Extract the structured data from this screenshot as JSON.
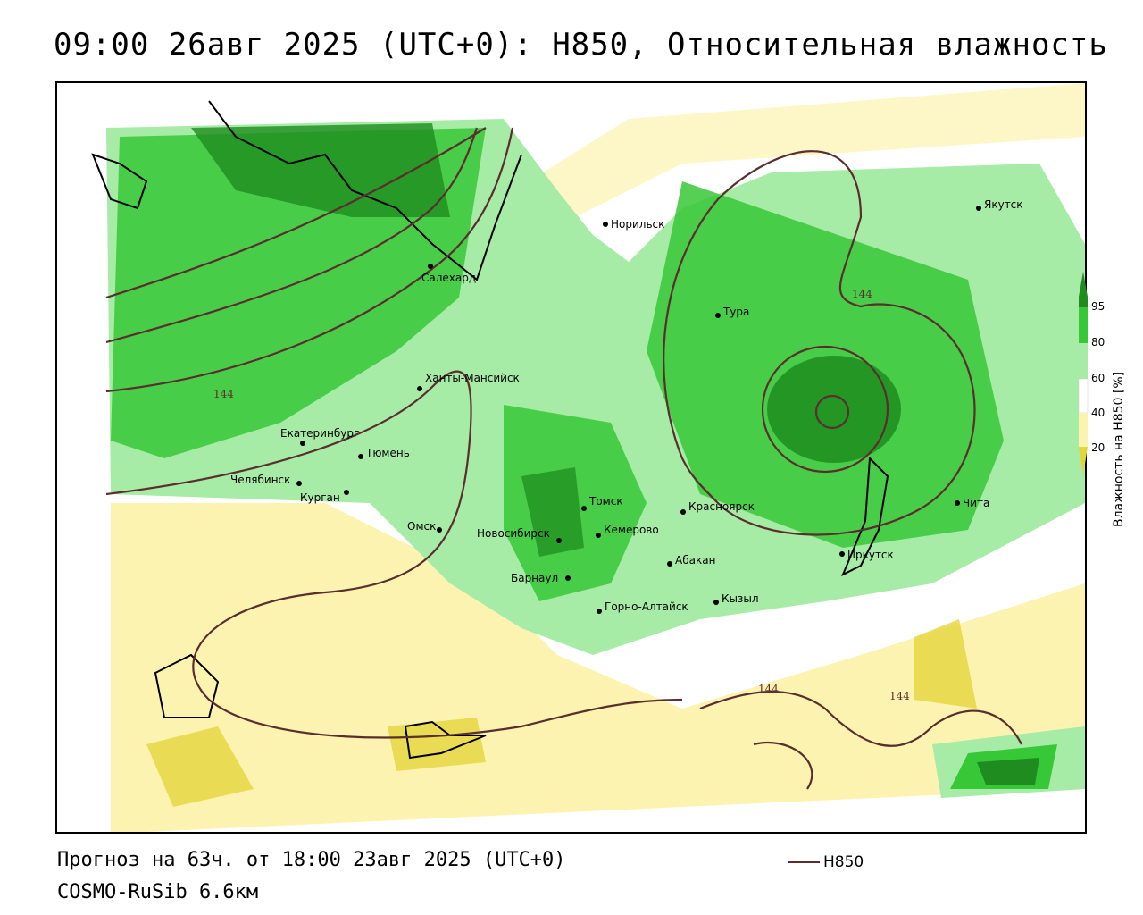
{
  "title": "09:00 26авг 2025 (UTC+0): H850, Относительная влажность",
  "footer": {
    "forecast": "Прогноз на 63ч. от 18:00 23авг 2025 (UTC+0)",
    "model": "COSMO-RuSib 6.6км"
  },
  "legend": {
    "contour_label": "H850",
    "contour_color": "#5a2e2e"
  },
  "colorbar": {
    "title": "Влажность на H850 [%]",
    "ticks": [
      "95",
      "80",
      "60",
      "40",
      "20"
    ],
    "colors": [
      "#1e8c1e",
      "#37c837",
      "#a6eba6",
      "#ffffff",
      "#fcf3b0",
      "#e3d53c"
    ]
  },
  "contour_labels": [
    "144",
    "144",
    "144",
    "144"
  ],
  "cities": [
    {
      "name": "Якутск"
    },
    {
      "name": "Норильск"
    },
    {
      "name": "Салехард"
    },
    {
      "name": "Тура"
    },
    {
      "name": "Ханты-Мансийск"
    },
    {
      "name": "Екатеринбург"
    },
    {
      "name": "Тюмень"
    },
    {
      "name": "Челябинск"
    },
    {
      "name": "Курган"
    },
    {
      "name": "Омск"
    },
    {
      "name": "Новосибирск"
    },
    {
      "name": "Томск"
    },
    {
      "name": "Кемерово"
    },
    {
      "name": "Красноярск"
    },
    {
      "name": "Барнаул"
    },
    {
      "name": "Абакан"
    },
    {
      "name": "Горно-Алтайск"
    },
    {
      "name": "Кызыл"
    },
    {
      "name": "Иркутск"
    },
    {
      "name": "Чита"
    }
  ]
}
